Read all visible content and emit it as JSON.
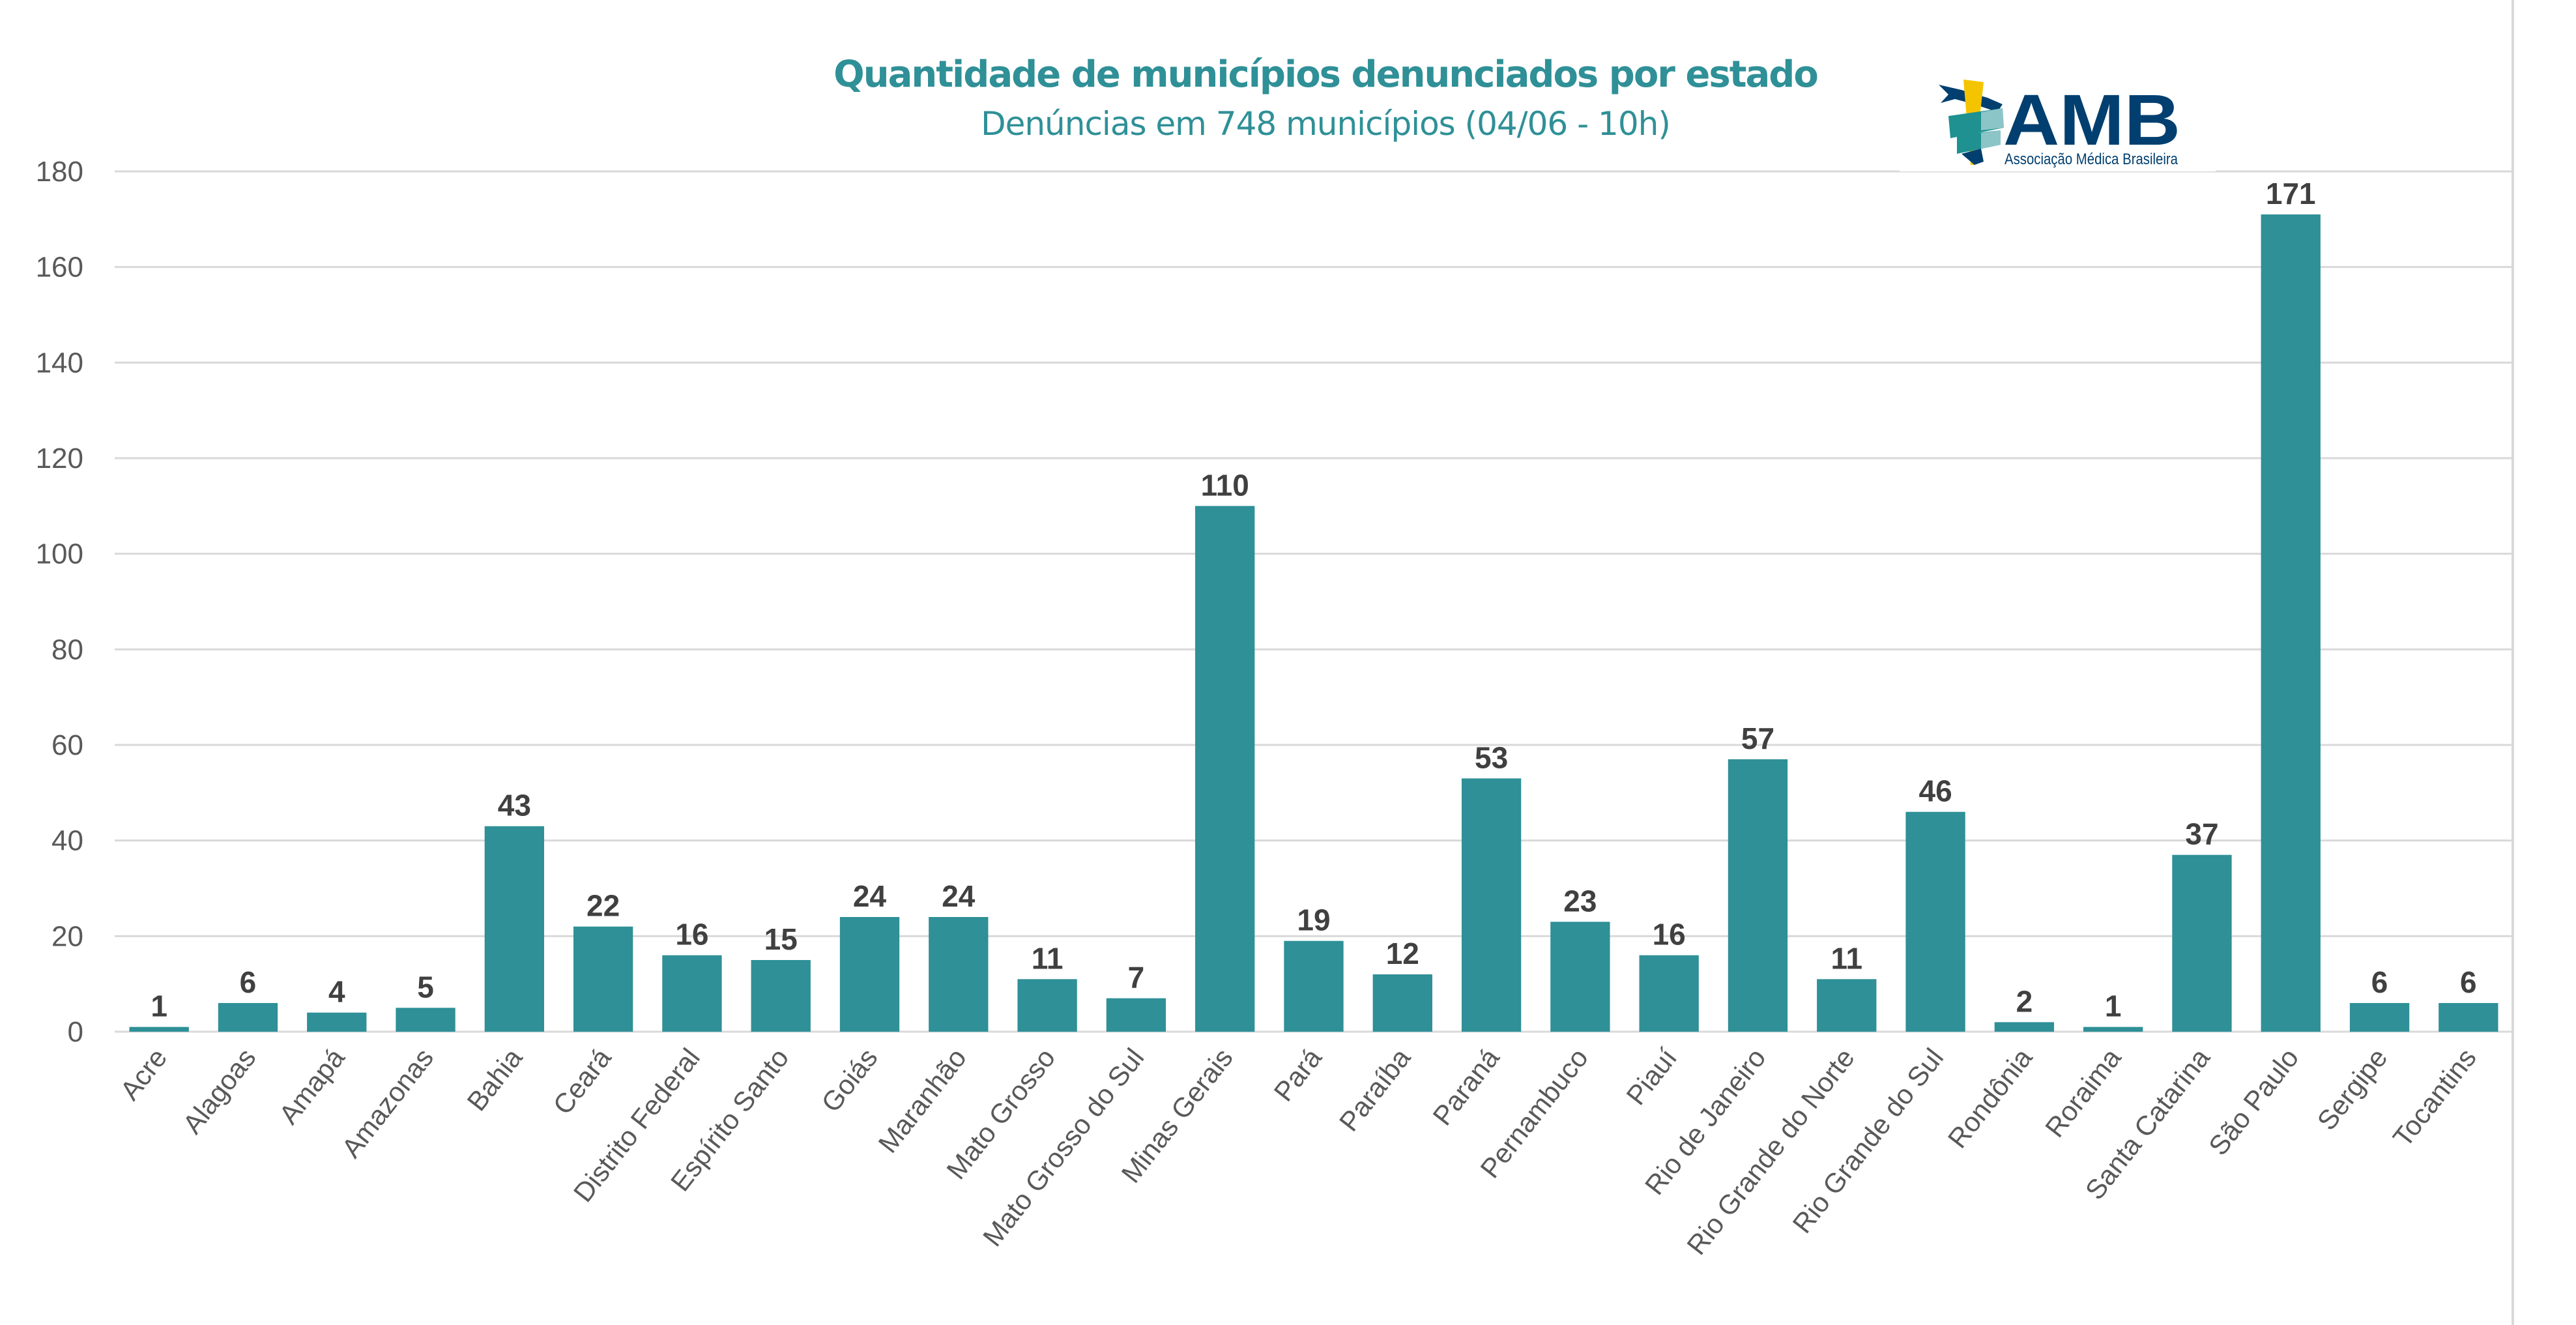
{
  "colors": {
    "bar": "#2f9097",
    "title": "#2f9097",
    "data_label": "#404040",
    "tick_label": "#595959",
    "grid": "#d9d9d9",
    "logo_navy": "#003f6f",
    "logo_yellow": "#f5c400",
    "logo_teal": "#1e9190"
  },
  "logo": {
    "name": "AMB",
    "tagline": "Associação Médica Brasileira"
  },
  "chart_data": {
    "type": "bar",
    "title": "Quantidade de municípios denunciados por estado",
    "subtitle": "Denúncias em 748 municípios (04/06 - 10h)",
    "xlabel": "",
    "ylabel": "",
    "ylim": [
      0,
      180
    ],
    "yticks": [
      0,
      20,
      40,
      60,
      80,
      100,
      120,
      140,
      160,
      180
    ],
    "grid": true,
    "legend": "none",
    "categories": [
      "Acre",
      "Alagoas",
      "Amapá",
      "Amazonas",
      "Bahia",
      "Ceará",
      "Distrito Federal",
      "Espírito Santo",
      "Goiás",
      "Maranhão",
      "Mato Grosso",
      "Mato Grosso do Sul",
      "Minas Gerais",
      "Pará",
      "Paraíba",
      "Paraná",
      "Pernambuco",
      "Piauí",
      "Rio de Janeiro",
      "Rio Grande do Norte",
      "Rio Grande do Sul",
      "Rondônia",
      "Roraima",
      "Santa Catarina",
      "São Paulo",
      "Sergipe",
      "Tocantins"
    ],
    "values": [
      1,
      6,
      4,
      5,
      43,
      22,
      16,
      15,
      24,
      24,
      11,
      7,
      110,
      19,
      12,
      53,
      23,
      16,
      57,
      11,
      46,
      2,
      1,
      37,
      171,
      6,
      6
    ]
  }
}
